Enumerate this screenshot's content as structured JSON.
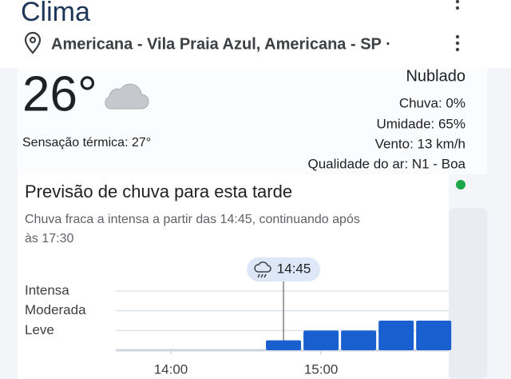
{
  "header": {
    "title": "Clima",
    "location": "Americana - Vila Praia Azul, Americana - SP ·"
  },
  "current": {
    "temperature": "26°",
    "feels_like": "Sensação térmica: 27°",
    "condition": "Nublado",
    "details": [
      "Chuva: 0%",
      "Umidade: 65%",
      "Vento: 13 km/h",
      "Qualidade do ar: N1 - Boa"
    ]
  },
  "forecast": {
    "title": "Previsão de chuva para esta tarde",
    "description": [
      "Chuva fraca a intensa a partir das 14:45, continuando após",
      "às 17:30"
    ]
  },
  "chart_data": {
    "type": "bar",
    "x": [
      "14:45",
      "15:00",
      "15:15",
      "15:30",
      "15:45"
    ],
    "values": [
      0.5,
      1,
      1,
      1.5,
      1.5
    ],
    "color": "#1a5fd0",
    "xlim": [
      "13:38",
      "15:51"
    ],
    "xticks": [
      "14:00",
      "15:00"
    ],
    "ylim": [
      0,
      3
    ],
    "yticks": [
      {
        "value": 1,
        "label": "Leve"
      },
      {
        "value": 2,
        "label": "Moderada"
      },
      {
        "value": 3,
        "label": "Intensa"
      }
    ],
    "grid": true,
    "annotation": "14:45"
  }
}
